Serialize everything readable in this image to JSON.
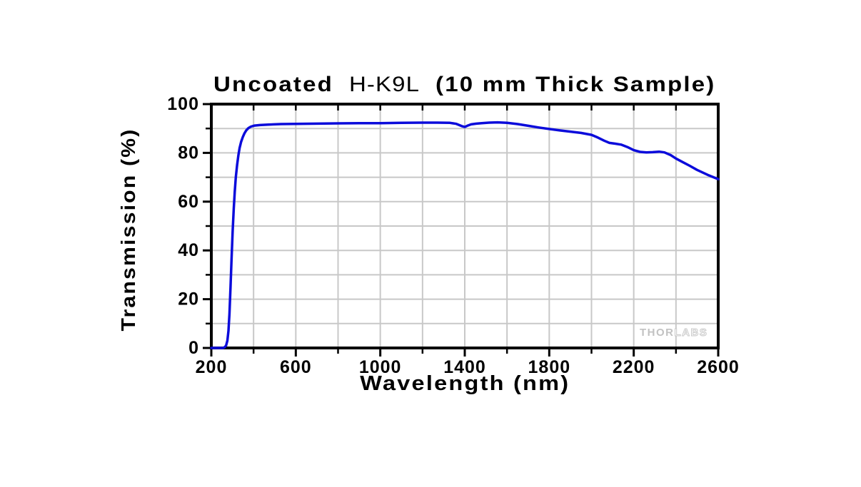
{
  "title": {
    "prefix": "Uncoated",
    "glass": "H-K9L",
    "suffix": "(10 mm Thick Sample)"
  },
  "watermark": {
    "part1": "THOR",
    "part2": "LABS"
  },
  "chart_data": {
    "type": "line",
    "title": "Uncoated H-K9L (10 mm Thick Sample)",
    "xlabel": "Wavelength (nm)",
    "ylabel": "Transmission (%)",
    "xlim": [
      200,
      2600
    ],
    "ylim": [
      0,
      100
    ],
    "x_major_ticks": [
      200,
      600,
      1000,
      1400,
      1800,
      2200,
      2600
    ],
    "x_minor_ticks": [
      400,
      800,
      1200,
      1600,
      2000,
      2400
    ],
    "y_major_ticks": [
      0,
      20,
      40,
      60,
      80,
      100
    ],
    "y_minor_ticks": [
      10,
      30,
      50,
      70,
      90
    ],
    "grid": {
      "on": true,
      "x_interval": 200,
      "y_interval": 10,
      "color": "#c8c8c8"
    },
    "legend": "none",
    "axis_color": "#000000",
    "series": [
      {
        "name": "Transmission of uncoated H-K9L, 10 mm thick",
        "color": "#0b0bdb",
        "points": [
          [
            200,
            0
          ],
          [
            255,
            0
          ],
          [
            263,
            0.3
          ],
          [
            270,
            1
          ],
          [
            276,
            3
          ],
          [
            281,
            7
          ],
          [
            286,
            14
          ],
          [
            291,
            25
          ],
          [
            296,
            37
          ],
          [
            301,
            48
          ],
          [
            306,
            57
          ],
          [
            311,
            64
          ],
          [
            316,
            70
          ],
          [
            322,
            75
          ],
          [
            328,
            79
          ],
          [
            334,
            82
          ],
          [
            341,
            84.5
          ],
          [
            349,
            86.5
          ],
          [
            357,
            88
          ],
          [
            366,
            89.3
          ],
          [
            376,
            90.2
          ],
          [
            388,
            90.8
          ],
          [
            405,
            91.2
          ],
          [
            430,
            91.4
          ],
          [
            470,
            91.6
          ],
          [
            530,
            91.8
          ],
          [
            600,
            91.9
          ],
          [
            700,
            92.0
          ],
          [
            800,
            92.1
          ],
          [
            900,
            92.15
          ],
          [
            1000,
            92.2
          ],
          [
            1100,
            92.3
          ],
          [
            1200,
            92.4
          ],
          [
            1270,
            92.4
          ],
          [
            1330,
            92.3
          ],
          [
            1360,
            91.9
          ],
          [
            1385,
            91.0
          ],
          [
            1400,
            90.6
          ],
          [
            1412,
            91.1
          ],
          [
            1430,
            91.7
          ],
          [
            1455,
            92.0
          ],
          [
            1480,
            92.2
          ],
          [
            1515,
            92.4
          ],
          [
            1555,
            92.5
          ],
          [
            1600,
            92.3
          ],
          [
            1650,
            91.8
          ],
          [
            1700,
            91.1
          ],
          [
            1750,
            90.4
          ],
          [
            1800,
            89.8
          ],
          [
            1850,
            89.2
          ],
          [
            1900,
            88.7
          ],
          [
            1950,
            88.2
          ],
          [
            2000,
            87.4
          ],
          [
            2030,
            86.3
          ],
          [
            2060,
            85.0
          ],
          [
            2085,
            84.1
          ],
          [
            2110,
            83.8
          ],
          [
            2140,
            83.4
          ],
          [
            2170,
            82.4
          ],
          [
            2200,
            81.1
          ],
          [
            2230,
            80.4
          ],
          [
            2260,
            80.2
          ],
          [
            2290,
            80.3
          ],
          [
            2320,
            80.5
          ],
          [
            2345,
            80.2
          ],
          [
            2375,
            79.1
          ],
          [
            2400,
            77.7
          ],
          [
            2430,
            76.3
          ],
          [
            2465,
            74.7
          ],
          [
            2500,
            73.0
          ],
          [
            2550,
            71.0
          ],
          [
            2600,
            69.2
          ]
        ]
      }
    ]
  }
}
